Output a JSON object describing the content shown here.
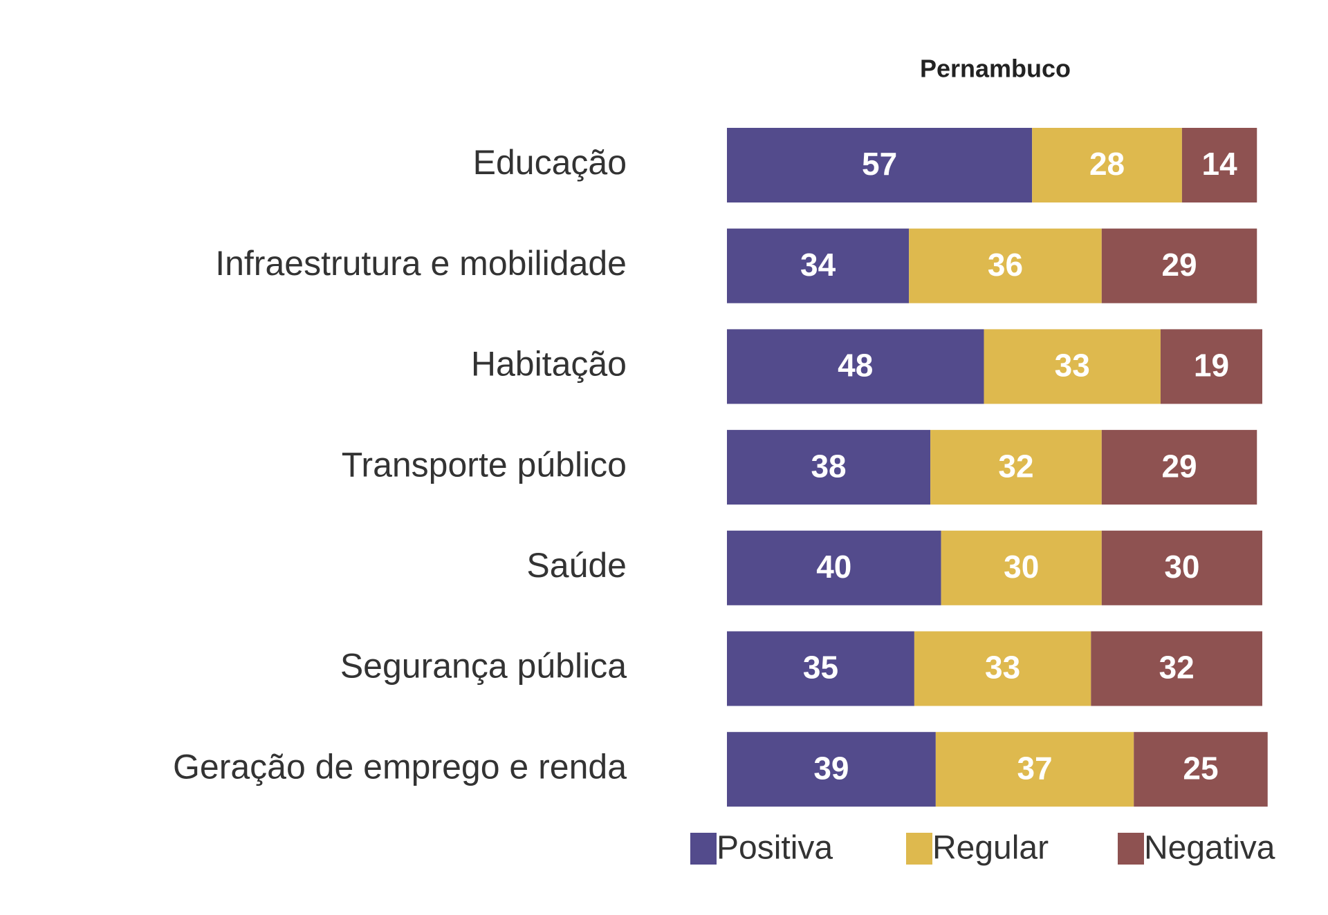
{
  "chart_data": {
    "type": "stacked_barh",
    "title": "Pernambuco",
    "categories": [
      "Educação",
      "Infraestrutura e mobilidade",
      "Habitação",
      "Transporte público",
      "Saúde",
      "Segurança pública",
      "Geração de emprego e renda"
    ],
    "series": [
      {
        "name": "Positiva",
        "color": "#534b8c",
        "values": [
          57,
          34,
          48,
          38,
          40,
          35,
          39
        ]
      },
      {
        "name": "Regular",
        "color": "#deb94e",
        "values": [
          28,
          36,
          33,
          32,
          30,
          33,
          37
        ]
      },
      {
        "name": "Negativa",
        "color": "#8e5251",
        "values": [
          14,
          29,
          19,
          29,
          30,
          32,
          25
        ]
      }
    ],
    "xlim": [
      0,
      100
    ]
  }
}
